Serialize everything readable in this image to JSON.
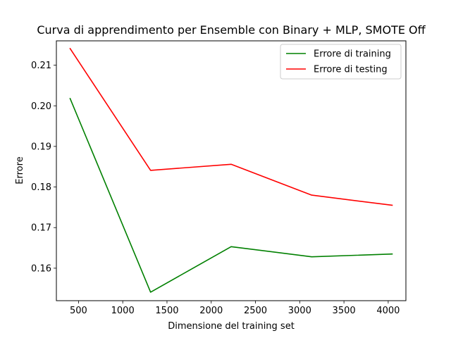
{
  "chart_data": {
    "type": "line",
    "title": "Curva di apprendimento per Ensemble con Binary + MLP, SMOTE Off",
    "xlabel": "Dimensione del training set",
    "ylabel": "Errore",
    "xlim": [
      250,
      4200
    ],
    "ylim": [
      0.152,
      0.216
    ],
    "xticks": [
      500,
      1000,
      1500,
      2000,
      2500,
      3000,
      3500,
      4000
    ],
    "yticks": [
      0.16,
      0.17,
      0.18,
      0.19,
      0.2,
      0.21
    ],
    "xtick_labels": [
      "500",
      "1000",
      "1500",
      "2000",
      "2500",
      "3000",
      "3500",
      "4000"
    ],
    "ytick_labels": [
      "0.16",
      "0.17",
      "0.18",
      "0.19",
      "0.20",
      "0.21"
    ],
    "x": [
      405,
      1315,
      2225,
      3135,
      4045
    ],
    "series": [
      {
        "name": "Errore di training",
        "color": "#008000",
        "values": [
          0.2018,
          0.1541,
          0.1653,
          0.1628,
          0.1635
        ]
      },
      {
        "name": "Errore di testing",
        "color": "#ff0000",
        "values": [
          0.2141,
          0.1841,
          0.1856,
          0.178,
          0.1755
        ]
      }
    ],
    "grid": false,
    "legend_position": "top-right"
  }
}
